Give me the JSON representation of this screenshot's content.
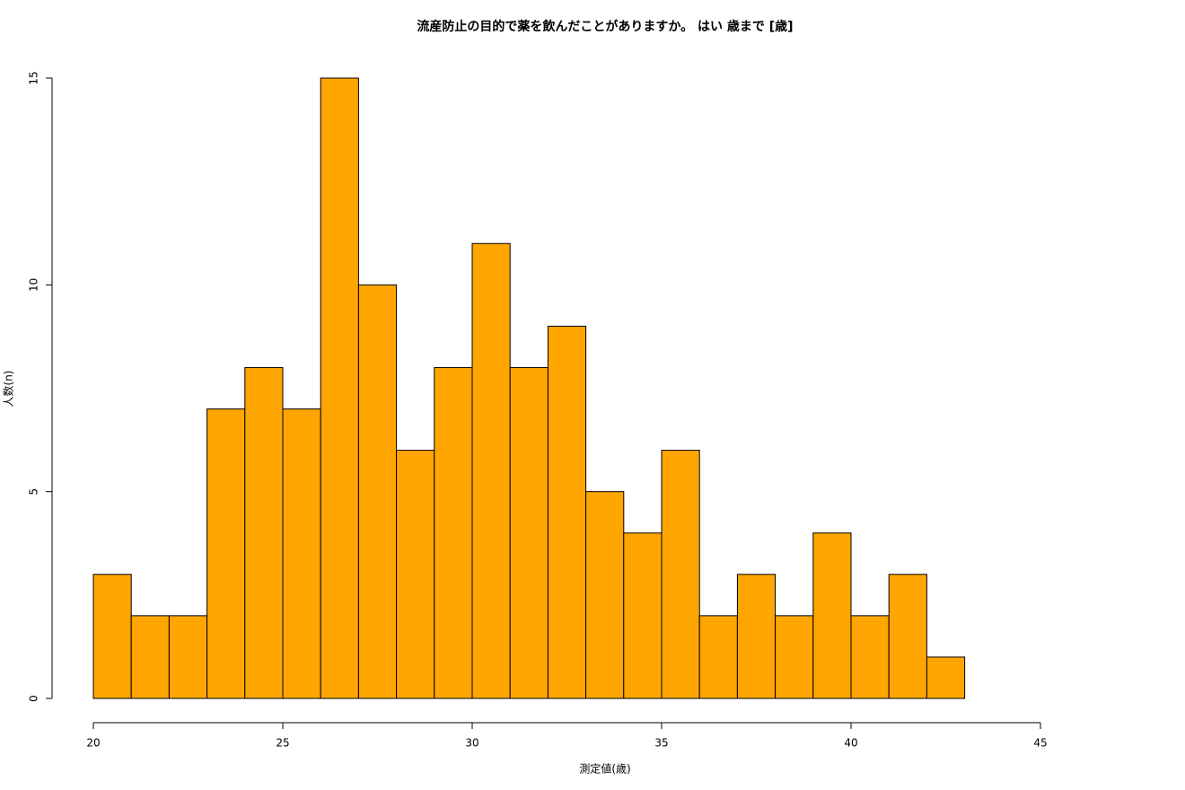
{
  "chart_data": {
    "type": "histogram",
    "title": "流産防止の目的で薬を飲んだことがありますか。 はい 歳まで [歳]",
    "x_label": "測定値(歳)",
    "y_label": "人数(n)",
    "bins": [
      20,
      21,
      22,
      23,
      24,
      25,
      26,
      27,
      28,
      29,
      30,
      31,
      32,
      33,
      34,
      35,
      36,
      37,
      38,
      39,
      40,
      41,
      42,
      43
    ],
    "counts": [
      3,
      2,
      2,
      7,
      8,
      7,
      15,
      10,
      6,
      8,
      11,
      8,
      9,
      5,
      4,
      6,
      2,
      3,
      2,
      4,
      2,
      3,
      1
    ],
    "color": "#ffa500",
    "xlim": [
      20,
      45
    ],
    "xticks": [
      20,
      25,
      30,
      35,
      40,
      45
    ],
    "ylim": [
      0,
      15
    ],
    "yticks": [
      0,
      5,
      10,
      15
    ]
  }
}
